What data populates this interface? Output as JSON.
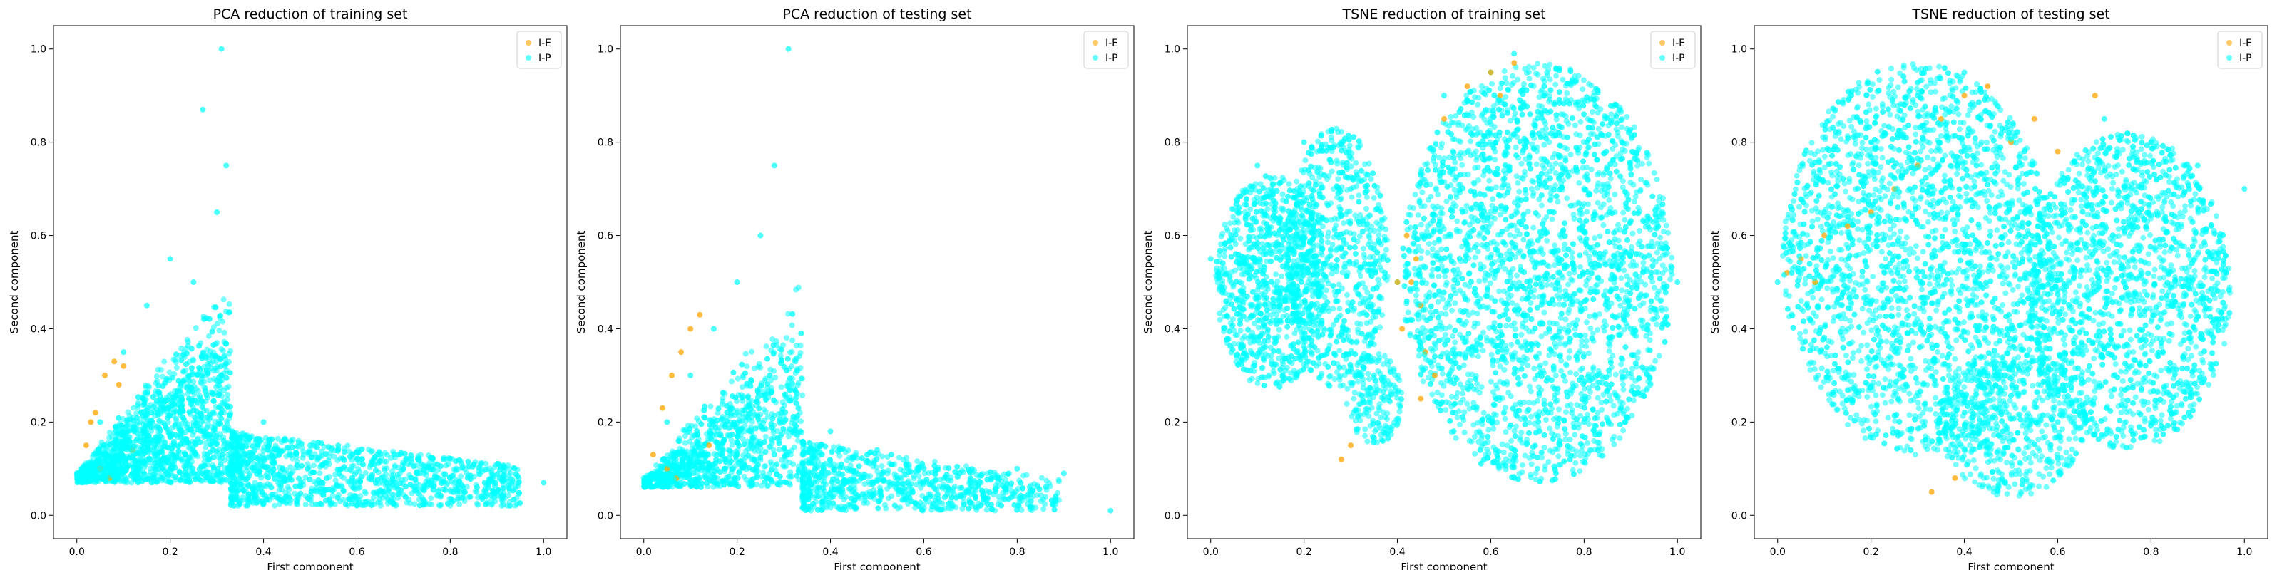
{
  "chart_data": [
    {
      "type": "scatter",
      "title": "PCA reduction of training set",
      "xlabel": "First component",
      "ylabel": "Second component",
      "xlim": [
        -0.05,
        1.05
      ],
      "ylim": [
        -0.05,
        1.05
      ],
      "xticks": [
        "0.0",
        "0.2",
        "0.4",
        "0.6",
        "0.8",
        "1.0"
      ],
      "yticks": [
        "0.0",
        "0.2",
        "0.4",
        "0.6",
        "0.8",
        "1.0"
      ],
      "legend_position": "top-right",
      "series": [
        {
          "name": "I-E",
          "color": "#ffa500",
          "x": [
            0.02,
            0.04,
            0.06,
            0.08,
            0.1,
            0.05,
            0.07,
            0.12,
            0.03,
            0.09
          ],
          "y": [
            0.15,
            0.22,
            0.3,
            0.33,
            0.32,
            0.1,
            0.08,
            0.14,
            0.2,
            0.28
          ]
        },
        {
          "name": "I-P",
          "color": "#00ffff",
          "x": [
            0.0,
            0.05,
            0.1,
            0.15,
            0.2,
            0.25,
            0.3,
            0.32,
            0.4,
            0.5,
            0.6,
            0.7,
            0.8,
            0.9,
            1.0,
            0.27,
            0.31
          ],
          "y": [
            0.09,
            0.2,
            0.35,
            0.45,
            0.55,
            0.5,
            0.65,
            0.75,
            0.2,
            0.15,
            0.12,
            0.1,
            0.08,
            0.05,
            0.07,
            0.87,
            1.0
          ]
        }
      ]
    },
    {
      "type": "scatter",
      "title": "PCA reduction of testing set",
      "xlabel": "First component",
      "ylabel": "Second component",
      "xlim": [
        -0.05,
        1.05
      ],
      "ylim": [
        -0.05,
        1.05
      ],
      "xticks": [
        "0.0",
        "0.2",
        "0.4",
        "0.6",
        "0.8",
        "1.0"
      ],
      "yticks": [
        "0.0",
        "0.2",
        "0.4",
        "0.6",
        "0.8",
        "1.0"
      ],
      "legend_position": "top-right",
      "series": [
        {
          "name": "I-E",
          "color": "#ffa500",
          "x": [
            0.02,
            0.04,
            0.06,
            0.08,
            0.1,
            0.12,
            0.05,
            0.07,
            0.14
          ],
          "y": [
            0.13,
            0.23,
            0.3,
            0.35,
            0.4,
            0.43,
            0.1,
            0.08,
            0.15
          ]
        },
        {
          "name": "I-P",
          "color": "#00ffff",
          "x": [
            0.0,
            0.05,
            0.1,
            0.15,
            0.2,
            0.25,
            0.3,
            0.4,
            0.5,
            0.6,
            0.7,
            0.8,
            0.9,
            1.0,
            0.28,
            0.31
          ],
          "y": [
            0.08,
            0.2,
            0.3,
            0.4,
            0.5,
            0.6,
            0.2,
            0.18,
            0.14,
            0.1,
            0.08,
            0.1,
            0.09,
            0.01,
            0.75,
            1.0
          ]
        }
      ]
    },
    {
      "type": "scatter",
      "title": "TSNE reduction of training set",
      "xlabel": "First component",
      "ylabel": "Second component",
      "xlim": [
        -0.05,
        1.05
      ],
      "ylim": [
        -0.05,
        1.05
      ],
      "xticks": [
        "0.0",
        "0.2",
        "0.4",
        "0.6",
        "0.8",
        "1.0"
      ],
      "yticks": [
        "0.0",
        "0.2",
        "0.4",
        "0.6",
        "0.8",
        "1.0"
      ],
      "legend_position": "top-right",
      "series": [
        {
          "name": "I-E",
          "color": "#ffa500",
          "x": [
            0.42,
            0.44,
            0.43,
            0.45,
            0.41,
            0.46,
            0.48,
            0.3,
            0.28,
            0.55,
            0.6,
            0.62,
            0.5,
            0.4,
            0.45,
            0.65
          ],
          "y": [
            0.6,
            0.55,
            0.5,
            0.45,
            0.4,
            0.35,
            0.3,
            0.15,
            0.12,
            0.92,
            0.95,
            0.9,
            0.85,
            0.5,
            0.25,
            0.97
          ]
        },
        {
          "name": "I-P",
          "color": "#00ffff",
          "x": [
            0.0,
            0.1,
            0.2,
            0.3,
            0.35,
            0.4,
            0.5,
            0.6,
            0.65,
            0.7,
            0.8,
            0.9,
            1.0
          ],
          "y": [
            0.55,
            0.75,
            0.8,
            0.7,
            0.3,
            0.5,
            0.9,
            0.95,
            0.99,
            0.1,
            0.2,
            0.4,
            0.5
          ]
        }
      ]
    },
    {
      "type": "scatter",
      "title": "TSNE reduction of testing set",
      "xlabel": "First component",
      "ylabel": "Second component",
      "xlim": [
        -0.05,
        1.05
      ],
      "ylim": [
        -0.05,
        1.05
      ],
      "xticks": [
        "0.0",
        "0.2",
        "0.4",
        "0.6",
        "0.8",
        "1.0"
      ],
      "yticks": [
        "0.0",
        "0.2",
        "0.4",
        "0.6",
        "0.8",
        "1.0"
      ],
      "legend_position": "top-right",
      "series": [
        {
          "name": "I-E",
          "color": "#ffa500",
          "x": [
            0.02,
            0.05,
            0.08,
            0.1,
            0.15,
            0.2,
            0.25,
            0.3,
            0.35,
            0.4,
            0.45,
            0.5,
            0.55,
            0.6,
            0.33,
            0.38,
            0.68
          ],
          "y": [
            0.52,
            0.55,
            0.5,
            0.6,
            0.62,
            0.65,
            0.7,
            0.75,
            0.85,
            0.9,
            0.92,
            0.8,
            0.85,
            0.78,
            0.05,
            0.08,
            0.9
          ]
        },
        {
          "name": "I-P",
          "color": "#00ffff",
          "x": [
            0.0,
            0.1,
            0.2,
            0.3,
            0.4,
            0.5,
            0.6,
            0.7,
            0.8,
            0.9,
            1.0
          ],
          "y": [
            0.5,
            0.65,
            0.8,
            0.9,
            0.95,
            0.4,
            0.2,
            0.85,
            0.8,
            0.75,
            0.7
          ]
        }
      ]
    }
  ]
}
